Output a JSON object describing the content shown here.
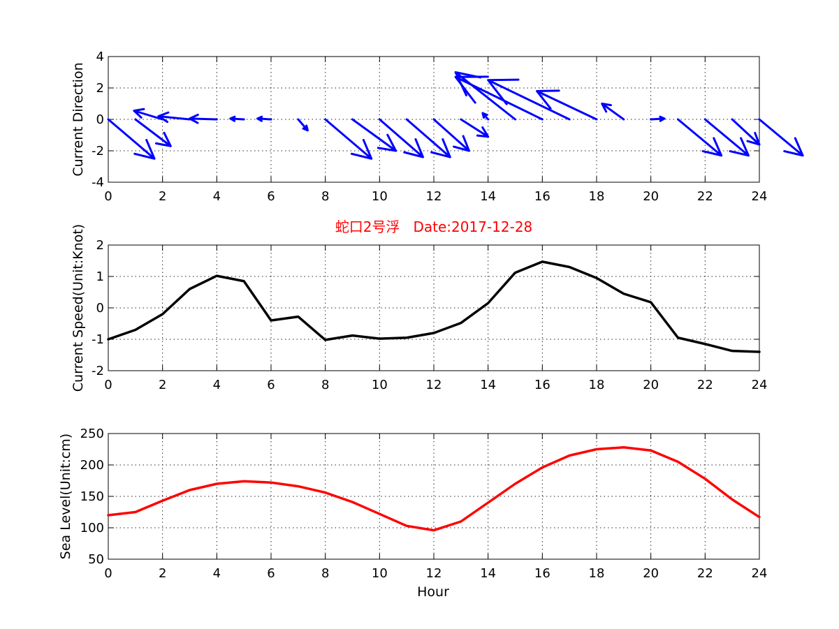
{
  "chart_data": [
    {
      "type": "quiver",
      "ylabel": "Current Direction",
      "xlim": [
        0,
        24
      ],
      "ylim": [
        -4,
        4
      ],
      "xticks": [
        0,
        2,
        4,
        6,
        8,
        10,
        12,
        14,
        16,
        18,
        20,
        22,
        24
      ],
      "yticks": [
        -4,
        -2,
        0,
        2,
        4
      ],
      "grid": true,
      "color": "#0000ff",
      "arrows": [
        {
          "x": 0,
          "y": 0,
          "u": 1.7,
          "v": -2.5
        },
        {
          "x": 1,
          "y": 0,
          "u": 1.3,
          "v": -1.7
        },
        {
          "x": 2,
          "y": 0,
          "u": -1.05,
          "v": 0.55
        },
        {
          "x": 3,
          "y": 0,
          "u": -1.15,
          "v": 0.2
        },
        {
          "x": 4,
          "y": 0,
          "u": -1.0,
          "v": 0.05
        },
        {
          "x": 5,
          "y": 0,
          "u": -0.5,
          "v": 0.05
        },
        {
          "x": 6,
          "y": 0,
          "u": -0.5,
          "v": 0.05
        },
        {
          "x": 7,
          "y": 0,
          "u": 0.35,
          "v": -0.7
        },
        {
          "x": 8,
          "y": 0,
          "u": 1.7,
          "v": -2.5
        },
        {
          "x": 9,
          "y": 0,
          "u": 1.6,
          "v": -2.0
        },
        {
          "x": 10,
          "y": 0,
          "u": 1.6,
          "v": -2.4
        },
        {
          "x": 11,
          "y": 0,
          "u": 1.6,
          "v": -2.4
        },
        {
          "x": 12,
          "y": 0,
          "u": 1.3,
          "v": -2.0
        },
        {
          "x": 13,
          "y": 0,
          "u": 1.0,
          "v": -1.1
        },
        {
          "x": 14,
          "y": 0,
          "u": -0.2,
          "v": 0.4
        },
        {
          "x": 15,
          "y": 0,
          "u": -2.2,
          "v": 3.0
        },
        {
          "x": 16,
          "y": 0,
          "u": -3.2,
          "v": 2.7
        },
        {
          "x": 17,
          "y": 0,
          "u": -3.0,
          "v": 2.5
        },
        {
          "x": 18,
          "y": 0,
          "u": -2.2,
          "v": 1.8
        },
        {
          "x": 19,
          "y": 0,
          "u": -0.8,
          "v": 1.0
        },
        {
          "x": 20,
          "y": 0,
          "u": 0.5,
          "v": 0.05
        },
        {
          "x": 21,
          "y": 0,
          "u": 1.6,
          "v": -2.3
        },
        {
          "x": 22,
          "y": 0,
          "u": 1.6,
          "v": -2.3
        },
        {
          "x": 23,
          "y": 0,
          "u": 1.0,
          "v": -1.6
        },
        {
          "x": 24,
          "y": 0,
          "u": 1.6,
          "v": -2.3
        }
      ]
    },
    {
      "type": "line",
      "title": "蛇口2号浮   Date:2017-12-28",
      "ylabel": "Current Speed(Unit:Knot)",
      "xlim": [
        0,
        24
      ],
      "ylim": [
        -2,
        2
      ],
      "xticks": [
        0,
        2,
        4,
        6,
        8,
        10,
        12,
        14,
        16,
        18,
        20,
        22,
        24
      ],
      "yticks": [
        -2,
        -1,
        0,
        1,
        2
      ],
      "grid": true,
      "color": "#000000",
      "x": [
        0,
        1,
        2,
        3,
        4,
        5,
        6,
        7,
        8,
        9,
        10,
        11,
        12,
        13,
        14,
        15,
        16,
        17,
        18,
        19,
        20,
        21,
        22,
        23,
        24
      ],
      "y": [
        -1.0,
        -0.7,
        -0.2,
        0.6,
        1.02,
        0.85,
        -0.4,
        -0.28,
        -1.02,
        -0.88,
        -0.98,
        -0.95,
        -0.8,
        -0.48,
        0.15,
        1.12,
        1.47,
        1.3,
        0.95,
        0.45,
        0.18,
        -0.95,
        -1.15,
        -1.37,
        -1.4
      ]
    },
    {
      "type": "line",
      "ylabel": "Sea Level(Unit:cm)",
      "xlabel": "Hour",
      "xlim": [
        0,
        24
      ],
      "ylim": [
        50,
        250
      ],
      "xticks": [
        0,
        2,
        4,
        6,
        8,
        10,
        12,
        14,
        16,
        18,
        20,
        22,
        24
      ],
      "yticks": [
        50,
        100,
        150,
        200,
        250
      ],
      "grid": true,
      "color": "#ff0000",
      "x": [
        0,
        1,
        2,
        3,
        4,
        5,
        6,
        7,
        8,
        9,
        10,
        11,
        12,
        13,
        14,
        15,
        16,
        17,
        18,
        19,
        20,
        21,
        22,
        23,
        24
      ],
      "y": [
        120,
        125,
        143,
        160,
        170,
        174,
        172,
        166,
        156,
        141,
        122,
        103,
        96,
        110,
        140,
        170,
        196,
        215,
        225,
        228,
        223,
        205,
        178,
        145,
        117
      ]
    }
  ]
}
